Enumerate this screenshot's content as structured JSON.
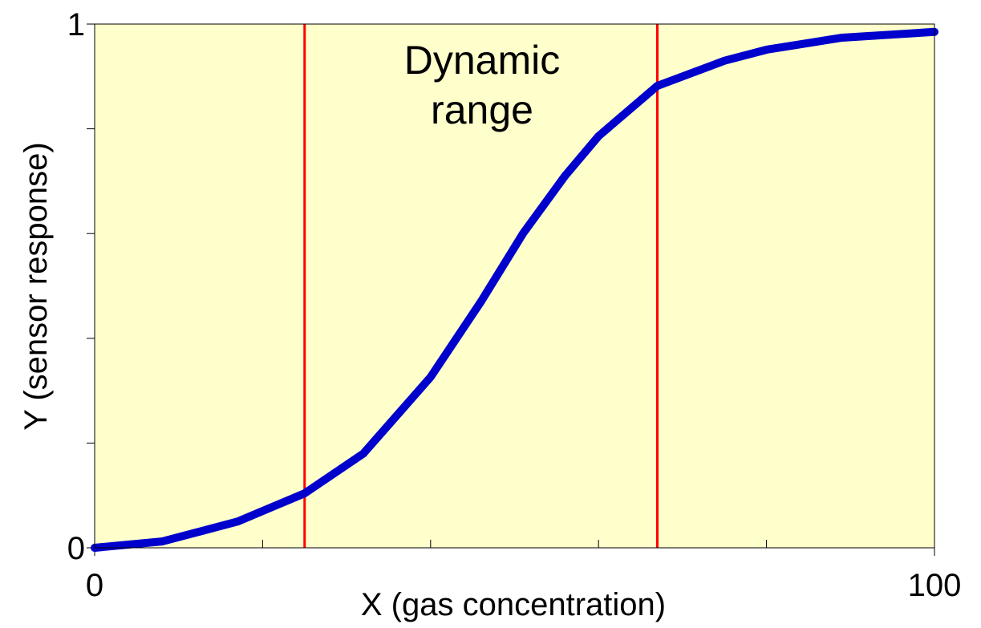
{
  "chart_data": {
    "type": "line",
    "xlabel": "X (gas concentration)",
    "ylabel": "Y (sensor response)",
    "annotation_lines": [
      "Dynamic",
      "range"
    ],
    "x": [
      0,
      8,
      17,
      25,
      32,
      40,
      46,
      51,
      56,
      60,
      67,
      75,
      80,
      89,
      100
    ],
    "series": [
      {
        "color": "#0000cc",
        "values": [
          0,
          0.012,
          0.05,
          0.104,
          0.18,
          0.326,
          0.47,
          0.6,
          0.71,
          0.786,
          0.882,
          0.93,
          0.951,
          0.974,
          0.985
        ]
      }
    ],
    "vlines": [
      25,
      67
    ],
    "vline_color": "#ff0000",
    "background": "#ffffcc",
    "xlim": [
      0,
      100
    ],
    "xticks": [
      0,
      100
    ],
    "xminor_ticks": [
      20,
      40,
      60,
      80
    ],
    "ylim": [
      0,
      1
    ],
    "yticks": [
      0,
      1
    ],
    "yminor_ticks": [
      0.2,
      0.4,
      0.6,
      0.8
    ],
    "grid": false
  }
}
